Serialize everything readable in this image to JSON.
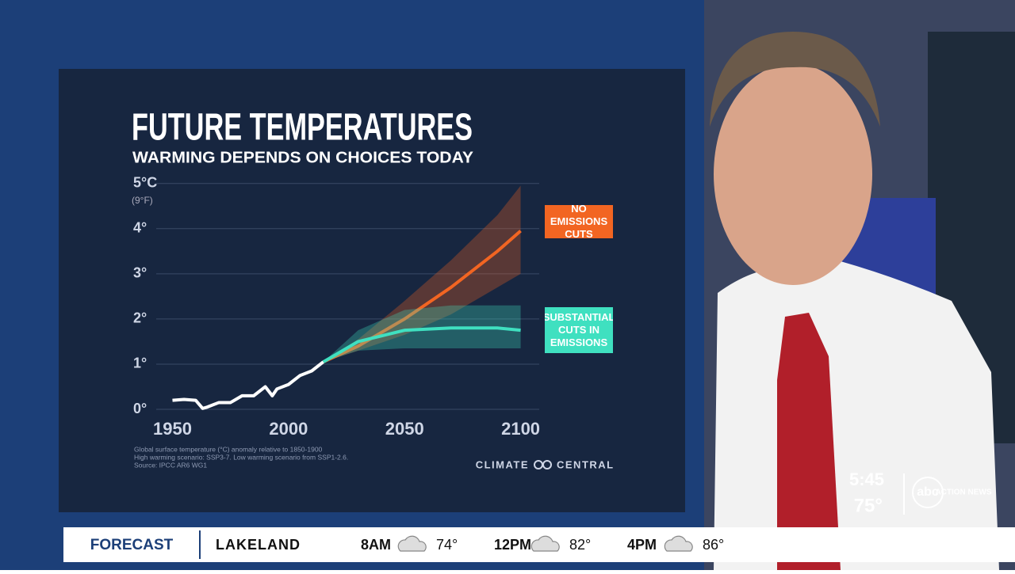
{
  "chart_data": {
    "type": "line",
    "title": "FUTURE TEMPERATURES",
    "subtitle": "WARMING DEPENDS ON CHOICES TODAY",
    "y_unit_note": "(9°F)",
    "xlim": [
      1943,
      2108
    ],
    "xticks": [
      1950,
      2000,
      2050,
      2100
    ],
    "ylim": [
      0,
      5.1
    ],
    "yticks": [
      {
        "value": 0,
        "label": "0°"
      },
      {
        "value": 1,
        "label": "1°"
      },
      {
        "value": 2,
        "label": "2°"
      },
      {
        "value": 3,
        "label": "3°"
      },
      {
        "value": 4,
        "label": "4°"
      },
      {
        "value": 5,
        "label": "5°C"
      }
    ],
    "grid": true,
    "series": [
      {
        "color": "#ffffff",
        "x": [
          1950,
          1955,
          1960,
          1963,
          1965,
          1970,
          1975,
          1980,
          1985,
          1990,
          1993,
          1995,
          2000,
          2005,
          2010,
          2015
        ],
        "values": [
          0.2,
          0.22,
          0.2,
          0.02,
          0.05,
          0.15,
          0.15,
          0.3,
          0.3,
          0.5,
          0.3,
          0.45,
          0.55,
          0.75,
          0.85,
          1.05
        ]
      },
      {
        "name": "NO EMISSIONS CUTS",
        "color": "#f26522",
        "x": [
          2015,
          2030,
          2050,
          2070,
          2090,
          2100
        ],
        "values": [
          1.05,
          1.4,
          2.0,
          2.7,
          3.5,
          3.95
        ],
        "band_low": [
          1.05,
          1.3,
          1.65,
          2.1,
          2.7,
          3.0
        ],
        "band_high": [
          1.05,
          1.55,
          2.4,
          3.3,
          4.3,
          4.95
        ]
      },
      {
        "name": "SUBSTANTIAL CUTS IN EMISSIONS",
        "color": "#3fe0c0",
        "x": [
          2015,
          2030,
          2050,
          2070,
          2090,
          2100
        ],
        "values": [
          1.05,
          1.5,
          1.75,
          1.8,
          1.8,
          1.75
        ],
        "band_low": [
          1.05,
          1.3,
          1.35,
          1.35,
          1.35,
          1.35
        ],
        "band_high": [
          1.05,
          1.75,
          2.2,
          2.3,
          2.3,
          2.3
        ]
      }
    ],
    "footnotes": [
      "Global surface temperature (°C) anomaly relative to 1850-1900",
      "High warming scenario: SSP3-7. Low warming scenario from SSP1-2.6.",
      "Source: IPCC AR6 WG1"
    ],
    "source_logo": [
      "CLIMATE",
      "CENTRAL"
    ]
  },
  "ticker": {
    "label": "FORECAST",
    "city": "LAKELAND",
    "items": [
      {
        "time": "8AM",
        "temp": "74°"
      },
      {
        "time": "12PM",
        "temp": "82°"
      },
      {
        "time": "4PM",
        "temp": "86°"
      }
    ]
  },
  "bug": {
    "clock": "5:45",
    "temp": "75°",
    "station": "abc",
    "station_sub": "ACTION NEWS"
  }
}
